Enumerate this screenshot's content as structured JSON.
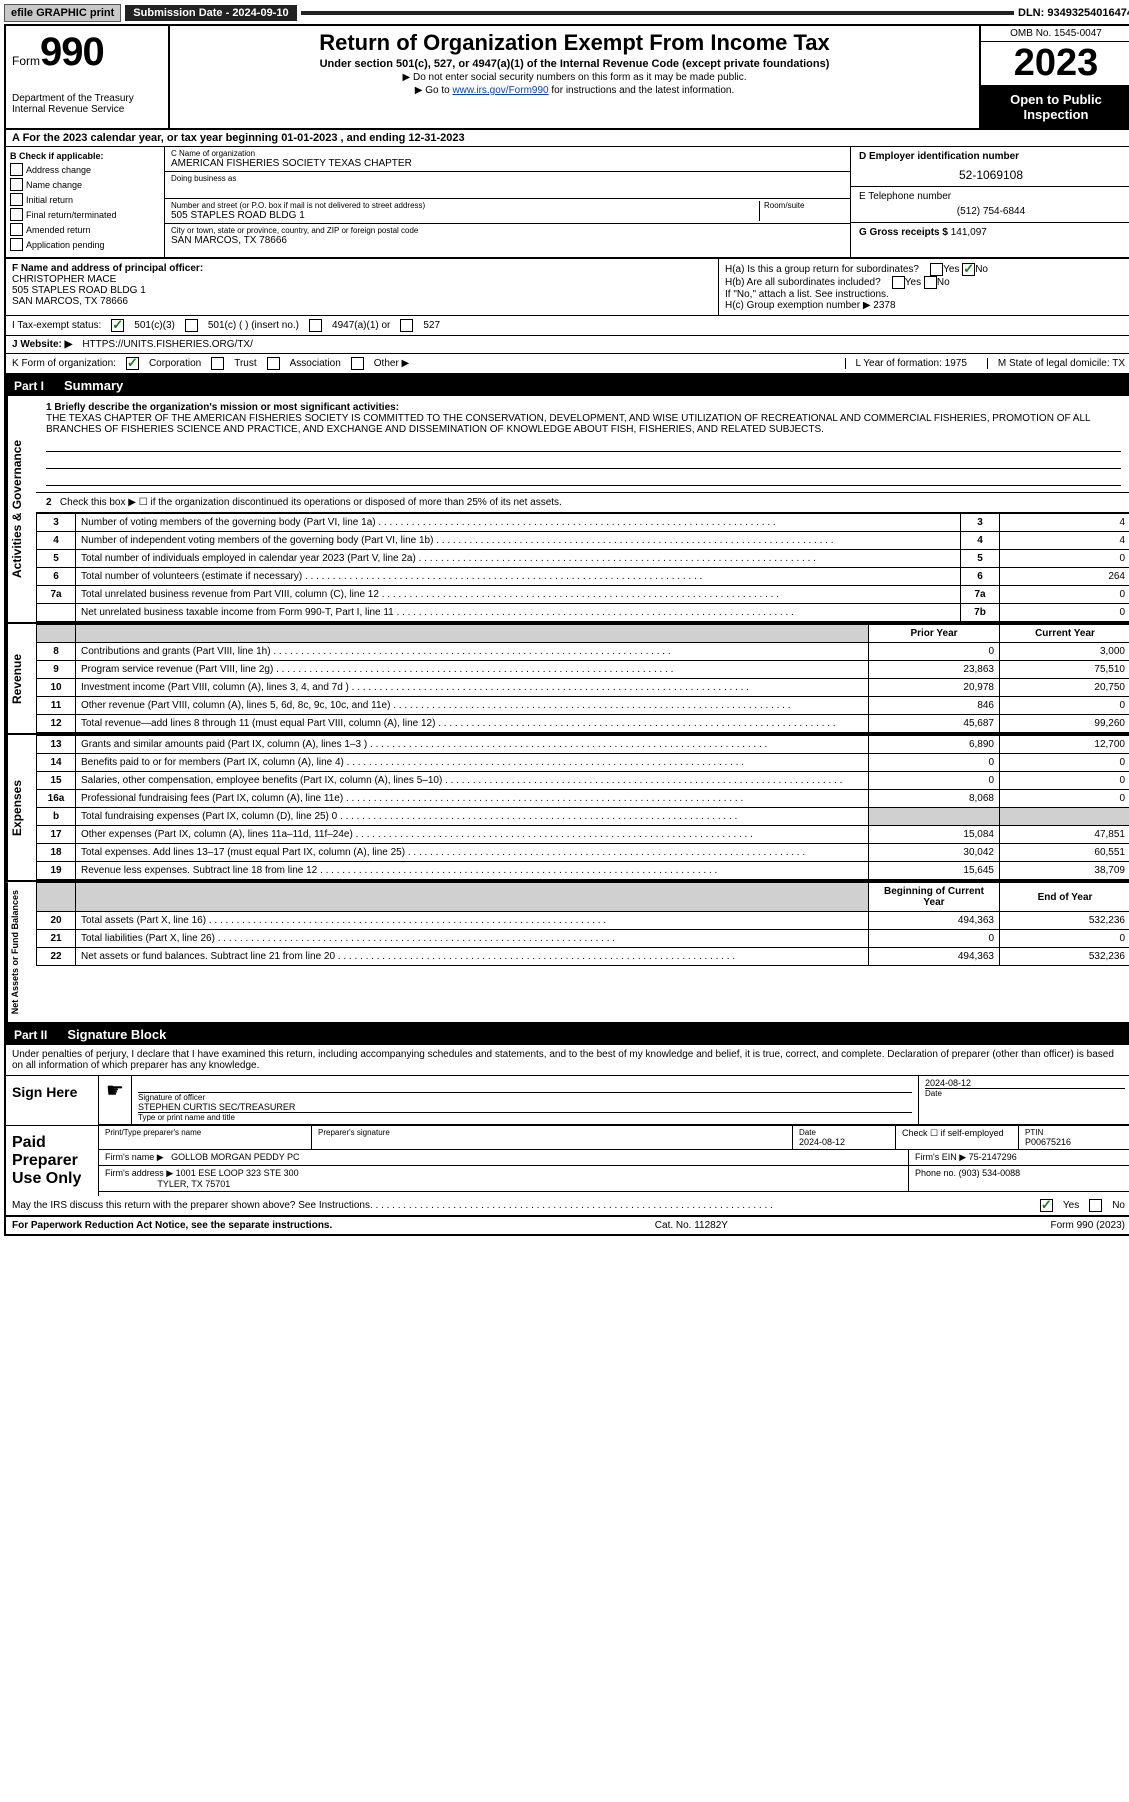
{
  "topbar": {
    "efile": "efile GRAPHIC print",
    "submission_label": "Submission Date - 2024-09-10",
    "dln_label": "DLN: 93493254016474"
  },
  "header": {
    "form_prefix": "Form",
    "form_number": "990",
    "dept": "Department of the Treasury",
    "irs": "Internal Revenue Service",
    "title": "Return of Organization Exempt From Income Tax",
    "sub1": "Under section 501(c), 527, or 4947(a)(1) of the Internal Revenue Code (except private foundations)",
    "sub2": "Do not enter social security numbers on this form as it may be made public.",
    "sub3_pre": "Go to ",
    "sub3_link": "www.irs.gov/Form990",
    "sub3_post": " for instructions and the latest information.",
    "omb": "OMB No. 1545-0047",
    "year": "2023",
    "inspect": "Open to Public Inspection"
  },
  "row_a": "A  For the 2023 calendar year, or tax year beginning 01-01-2023    , and ending 12-31-2023",
  "col_b": {
    "title": "B Check if applicable:",
    "items": [
      "Address change",
      "Name change",
      "Initial return",
      "Final return/terminated",
      "Amended return",
      "Application pending"
    ]
  },
  "col_c": {
    "name_lbl": "C Name of organization",
    "name": "AMERICAN FISHERIES SOCIETY TEXAS CHAPTER",
    "dba_lbl": "Doing business as",
    "dba": "",
    "addr_lbl": "Number and street (or P.O. box if mail is not delivered to street address)",
    "room_lbl": "Room/suite",
    "addr": "505 STAPLES ROAD BLDG 1",
    "city_lbl": "City or town, state or province, country, and ZIP or foreign postal code",
    "city": "SAN MARCOS, TX   78666"
  },
  "col_d": {
    "ein_lbl": "D Employer identification number",
    "ein": "52-1069108",
    "phone_lbl": "E Telephone number",
    "phone": "(512) 754-6844",
    "gross_lbl": "G Gross receipts $",
    "gross": "141,097"
  },
  "block_f": {
    "lbl": "F Name and address of principal officer:",
    "name": "CHRISTOPHER MACE",
    "addr1": "505 STAPLES ROAD BLDG 1",
    "addr2": "SAN MARCOS, TX  78666"
  },
  "block_h": {
    "ha": "H(a)  Is this a group return for subordinates?",
    "hb": "H(b)  Are all subordinates included?",
    "hb_note": "If \"No,\" attach a list. See instructions.",
    "hc": "H(c)  Group exemption number ▶  2378"
  },
  "row_i": {
    "label": "I   Tax-exempt status:",
    "opts": [
      "501(c)(3)",
      "501(c) (  ) (insert no.)",
      "4947(a)(1) or",
      "527"
    ]
  },
  "row_j": {
    "label": "J   Website: ▶",
    "val": "HTTPS://UNITS.FISHERIES.ORG/TX/"
  },
  "row_k": {
    "label": "K Form of organization:",
    "opts": [
      "Corporation",
      "Trust",
      "Association",
      "Other ▶"
    ],
    "l": "L Year of formation: 1975",
    "m": "M State of legal domicile: TX"
  },
  "part1": {
    "label": "Part I",
    "title": "Summary"
  },
  "mission": {
    "lbl": "1   Briefly describe the organization's mission or most significant activities:",
    "text": "THE TEXAS CHAPTER OF THE AMERICAN FISHERIES SOCIETY IS COMMITTED TO THE CONSERVATION, DEVELOPMENT, AND WISE UTILIZATION OF RECREATIONAL AND COMMERCIAL FISHERIES, PROMOTION OF ALL BRANCHES OF FISHERIES SCIENCE AND PRACTICE, AND EXCHANGE AND DISSEMINATION OF KNOWLEDGE ABOUT FISH, FISHERIES, AND RELATED SUBJECTS."
  },
  "governance": {
    "side": "Activities & Governance",
    "l2": "Check this box ▶ ☐ if the organization discontinued its operations or disposed of more than 25% of its net assets.",
    "rows": [
      {
        "n": "3",
        "d": "Number of voting members of the governing body (Part VI, line 1a)",
        "b": "3",
        "v": "4"
      },
      {
        "n": "4",
        "d": "Number of independent voting members of the governing body (Part VI, line 1b)",
        "b": "4",
        "v": "4"
      },
      {
        "n": "5",
        "d": "Total number of individuals employed in calendar year 2023 (Part V, line 2a)",
        "b": "5",
        "v": "0"
      },
      {
        "n": "6",
        "d": "Total number of volunteers (estimate if necessary)",
        "b": "6",
        "v": "264"
      },
      {
        "n": "7a",
        "d": "Total unrelated business revenue from Part VIII, column (C), line 12",
        "b": "7a",
        "v": "0"
      },
      {
        "n": "",
        "d": "Net unrelated business taxable income from Form 990-T, Part I, line 11",
        "b": "7b",
        "v": "0"
      }
    ]
  },
  "revenue": {
    "side": "Revenue",
    "h1": "Prior Year",
    "h2": "Current Year",
    "rows": [
      {
        "n": "8",
        "d": "Contributions and grants (Part VIII, line 1h)",
        "p": "0",
        "c": "3,000"
      },
      {
        "n": "9",
        "d": "Program service revenue (Part VIII, line 2g)",
        "p": "23,863",
        "c": "75,510"
      },
      {
        "n": "10",
        "d": "Investment income (Part VIII, column (A), lines 3, 4, and 7d )",
        "p": "20,978",
        "c": "20,750"
      },
      {
        "n": "11",
        "d": "Other revenue (Part VIII, column (A), lines 5, 6d, 8c, 9c, 10c, and 11e)",
        "p": "846",
        "c": "0"
      },
      {
        "n": "12",
        "d": "Total revenue—add lines 8 through 11 (must equal Part VIII, column (A), line 12)",
        "p": "45,687",
        "c": "99,260"
      }
    ]
  },
  "expenses": {
    "side": "Expenses",
    "rows": [
      {
        "n": "13",
        "d": "Grants and similar amounts paid (Part IX, column (A), lines 1–3 )",
        "p": "6,890",
        "c": "12,700"
      },
      {
        "n": "14",
        "d": "Benefits paid to or for members (Part IX, column (A), line 4)",
        "p": "0",
        "c": "0"
      },
      {
        "n": "15",
        "d": "Salaries, other compensation, employee benefits (Part IX, column (A), lines 5–10)",
        "p": "0",
        "c": "0"
      },
      {
        "n": "16a",
        "d": "Professional fundraising fees (Part IX, column (A), line 11e)",
        "p": "8,068",
        "c": "0"
      },
      {
        "n": "b",
        "d": "Total fundraising expenses (Part IX, column (D), line 25) 0",
        "p": "shade",
        "c": "shade"
      },
      {
        "n": "17",
        "d": "Other expenses (Part IX, column (A), lines 11a–11d, 11f–24e)",
        "p": "15,084",
        "c": "47,851"
      },
      {
        "n": "18",
        "d": "Total expenses. Add lines 13–17 (must equal Part IX, column (A), line 25)",
        "p": "30,042",
        "c": "60,551"
      },
      {
        "n": "19",
        "d": "Revenue less expenses. Subtract line 18 from line 12",
        "p": "15,645",
        "c": "38,709"
      }
    ]
  },
  "netassets": {
    "side": "Net Assets or Fund Balances",
    "h1": "Beginning of Current Year",
    "h2": "End of Year",
    "rows": [
      {
        "n": "20",
        "d": "Total assets (Part X, line 16)",
        "p": "494,363",
        "c": "532,236"
      },
      {
        "n": "21",
        "d": "Total liabilities (Part X, line 26)",
        "p": "0",
        "c": "0"
      },
      {
        "n": "22",
        "d": "Net assets or fund balances. Subtract line 21 from line 20",
        "p": "494,363",
        "c": "532,236"
      }
    ]
  },
  "part2": {
    "label": "Part II",
    "title": "Signature Block"
  },
  "sig": {
    "perjury": "Under penalties of perjury, I declare that I have examined this return, including accompanying schedules and statements, and to the best of my knowledge and belief, it is true, correct, and complete. Declaration of preparer (other than officer) is based on all information of which preparer has any knowledge.",
    "sign_here": "Sign Here",
    "sig_officer_lbl": "Signature of officer",
    "sig_name": "STEPHEN CURTIS SEC/TREASURER",
    "sig_type_lbl": "Type or print name and title",
    "date_lbl": "Date",
    "date": "2024-08-12",
    "paid": "Paid Preparer Use Only",
    "prep_name_lbl": "Print/Type preparer's name",
    "prep_sig_lbl": "Preparer's signature",
    "prep_date": "2024-08-12",
    "check_self": "Check ☐ if self-employed",
    "ptin_lbl": "PTIN",
    "ptin": "P00675216",
    "firm_name_lbl": "Firm's name   ▶",
    "firm_name": "GOLLOB MORGAN PEDDY PC",
    "firm_ein_lbl": "Firm's EIN ▶",
    "firm_ein": "75-2147296",
    "firm_addr_lbl": "Firm's address ▶",
    "firm_addr": "1001 ESE LOOP 323 STE 300",
    "firm_city": "TYLER, TX   75701",
    "firm_phone_lbl": "Phone no.",
    "firm_phone": "(903) 534-0088",
    "discuss": "May the IRS discuss this return with the preparer shown above? See Instructions."
  },
  "footer": {
    "paperwork": "For Paperwork Reduction Act Notice, see the separate instructions.",
    "catno": "Cat. No. 11282Y",
    "formref": "Form 990 (2023)"
  }
}
